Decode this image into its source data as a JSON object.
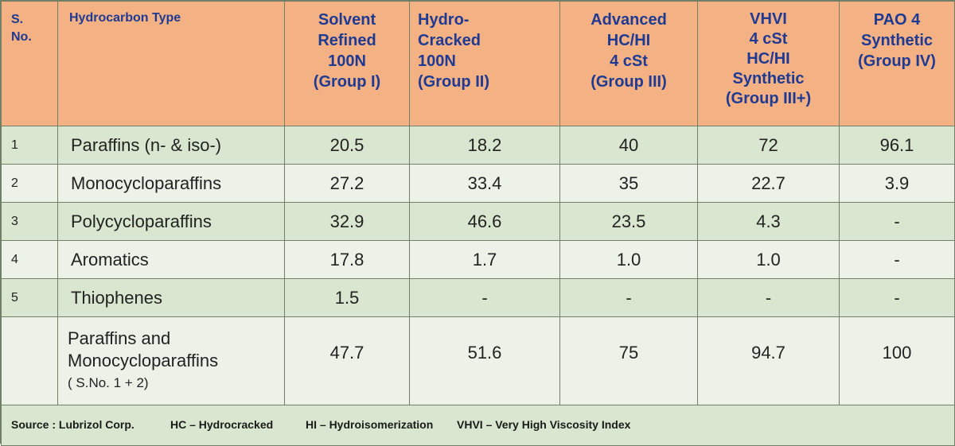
{
  "header": {
    "sno": [
      "S.",
      "No."
    ],
    "type": "Hydrocarbon Type",
    "groups": [
      [
        "Solvent",
        "Refined",
        "100N",
        "(Group I)"
      ],
      [
        "Hydro-",
        "Cracked",
        "100N",
        "(Group II)"
      ],
      [
        "Advanced",
        "HC/HI",
        "4 cSt",
        "(Group III)"
      ],
      [
        "VHVI",
        "4  cSt",
        "HC/HI",
        "Synthetic",
        "(Group III+)"
      ],
      [
        "PAO 4",
        "Synthetic",
        "(Group IV)"
      ]
    ]
  },
  "rows": [
    {
      "sno": "1",
      "type": "Paraffins (n- & iso-)",
      "values": [
        "20.5",
        "18.2",
        "40",
        "72",
        "96.1"
      ]
    },
    {
      "sno": "2",
      "type": "Monocycloparaffins",
      "values": [
        "27.2",
        "33.4",
        "35",
        "22.7",
        "3.9"
      ]
    },
    {
      "sno": "3",
      "type": "Polycycloparaffins",
      "values": [
        "32.9",
        "46.6",
        "23.5",
        "4.3",
        "-"
      ]
    },
    {
      "sno": "4",
      "type": "Aromatics",
      "values": [
        "17.8",
        "1.7",
        "1.0",
        "1.0",
        "-"
      ]
    },
    {
      "sno": "5",
      "type": "Thiophenes",
      "values": [
        "1.5",
        "-",
        "-",
        "-",
        "-"
      ]
    }
  ],
  "total": {
    "lines": [
      "Paraffins and",
      "Monocycloparaffins",
      "( S.No. 1 + 2)"
    ],
    "values": [
      "47.7",
      "51.6",
      "75",
      "94.7",
      "100"
    ]
  },
  "footer": {
    "source": "Source : Lubrizol Corp.",
    "hc": "HC – Hydrocracked",
    "hi": "HI – Hydroisomerization",
    "vhvi": "VHVI  – Very High Viscosity Index"
  },
  "colors": {
    "header_bg": "#f4b183",
    "header_text": "#1f3a93",
    "row_dark": "#d9e6d0",
    "row_light": "#ecf2e8"
  }
}
